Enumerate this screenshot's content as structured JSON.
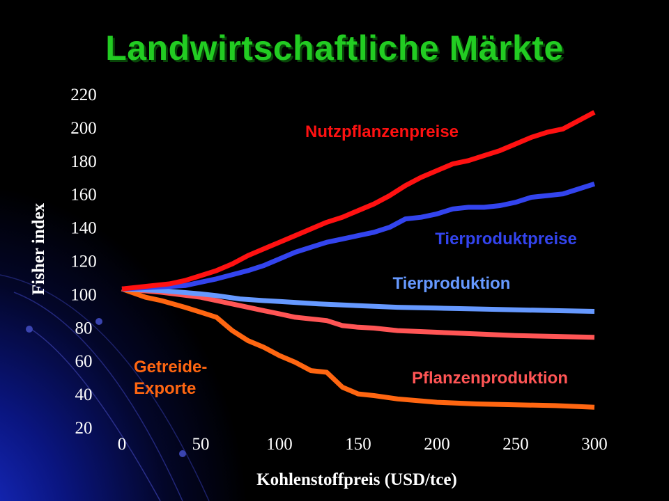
{
  "title": "Landwirtschaftliche Märkte",
  "colors": {
    "background": "#000000",
    "title": "#22cc22",
    "axis_text": "#ffffff"
  },
  "chart_data": {
    "type": "line",
    "xlabel": "Kohlenstoffpreis (USD/tce)",
    "ylabel": "Fisher index",
    "xlim": [
      0,
      300
    ],
    "ylim": [
      20,
      220
    ],
    "x_ticks": [
      0,
      50,
      100,
      150,
      200,
      250,
      300
    ],
    "y_ticks": [
      20,
      40,
      60,
      80,
      100,
      120,
      140,
      160,
      180,
      200,
      220
    ],
    "grid": false,
    "series": [
      {
        "name": "Nutzpflanzenpreise",
        "color": "#ff1111",
        "x": [
          0,
          20,
          30,
          40,
          50,
          60,
          70,
          80,
          90,
          100,
          110,
          120,
          130,
          140,
          150,
          160,
          170,
          180,
          190,
          200,
          210,
          220,
          230,
          240,
          250,
          260,
          270,
          280,
          290,
          300
        ],
        "values": [
          103,
          105,
          106,
          108,
          111,
          114,
          118,
          123,
          127,
          131,
          135,
          139,
          143,
          146,
          150,
          154,
          159,
          165,
          170,
          174,
          178,
          180,
          183,
          186,
          190,
          194,
          197,
          199,
          204,
          209
        ]
      },
      {
        "name": "Tierproduktpreise",
        "color": "#3344ee",
        "x": [
          0,
          20,
          40,
          50,
          60,
          80,
          90,
          100,
          110,
          120,
          130,
          140,
          150,
          160,
          170,
          180,
          190,
          200,
          210,
          220,
          230,
          240,
          250,
          260,
          270,
          280,
          290,
          300
        ],
        "values": [
          103,
          104,
          105,
          107,
          109,
          114,
          117,
          121,
          125,
          128,
          131,
          133,
          135,
          137,
          140,
          145,
          146,
          148,
          151,
          152,
          152,
          153,
          155,
          158,
          159,
          160,
          163,
          166
        ]
      },
      {
        "name": "Tierproduktion",
        "color": "#6699ff",
        "x": [
          0,
          25,
          50,
          60,
          75,
          90,
          100,
          125,
          150,
          175,
          200,
          225,
          250,
          275,
          300
        ],
        "values": [
          103,
          102,
          100,
          99,
          97,
          96,
          95.5,
          94,
          93,
          92,
          91.5,
          91,
          90.5,
          90,
          89.5
        ]
      },
      {
        "name": "Pflanzenproduktion",
        "color": "#ff5555",
        "x": [
          0,
          25,
          50,
          60,
          75,
          90,
          100,
          110,
          120,
          130,
          140,
          150,
          160,
          175,
          200,
          225,
          250,
          275,
          300
        ],
        "values": [
          103,
          101,
          98,
          96,
          93,
          90,
          88,
          86,
          85,
          84,
          81,
          80,
          79.5,
          78,
          77,
          76,
          75,
          74.5,
          74
        ]
      },
      {
        "name": "Getreide-Exporte",
        "color": "#ff6611",
        "x": [
          0,
          15,
          25,
          40,
          50,
          60,
          70,
          80,
          90,
          100,
          110,
          120,
          130,
          140,
          150,
          160,
          175,
          200,
          225,
          250,
          275,
          300
        ],
        "values": [
          103,
          98,
          96,
          92,
          89,
          86,
          78,
          72,
          68,
          63,
          59,
          54,
          53,
          44,
          40,
          39,
          37,
          35,
          34,
          33.5,
          33,
          32
        ]
      }
    ],
    "annotations": [
      {
        "text": "Nutzpflanzenpreise",
        "color": "#ff1111"
      },
      {
        "text": "Tierproduktpreise",
        "color": "#3344ee"
      },
      {
        "text": "Tierproduktion",
        "color": "#6699ff"
      },
      {
        "text": "Pflanzenproduktion",
        "color": "#ff5555"
      },
      {
        "lines": [
          "Getreide-",
          "Exporte"
        ],
        "color": "#ff6611"
      }
    ]
  }
}
